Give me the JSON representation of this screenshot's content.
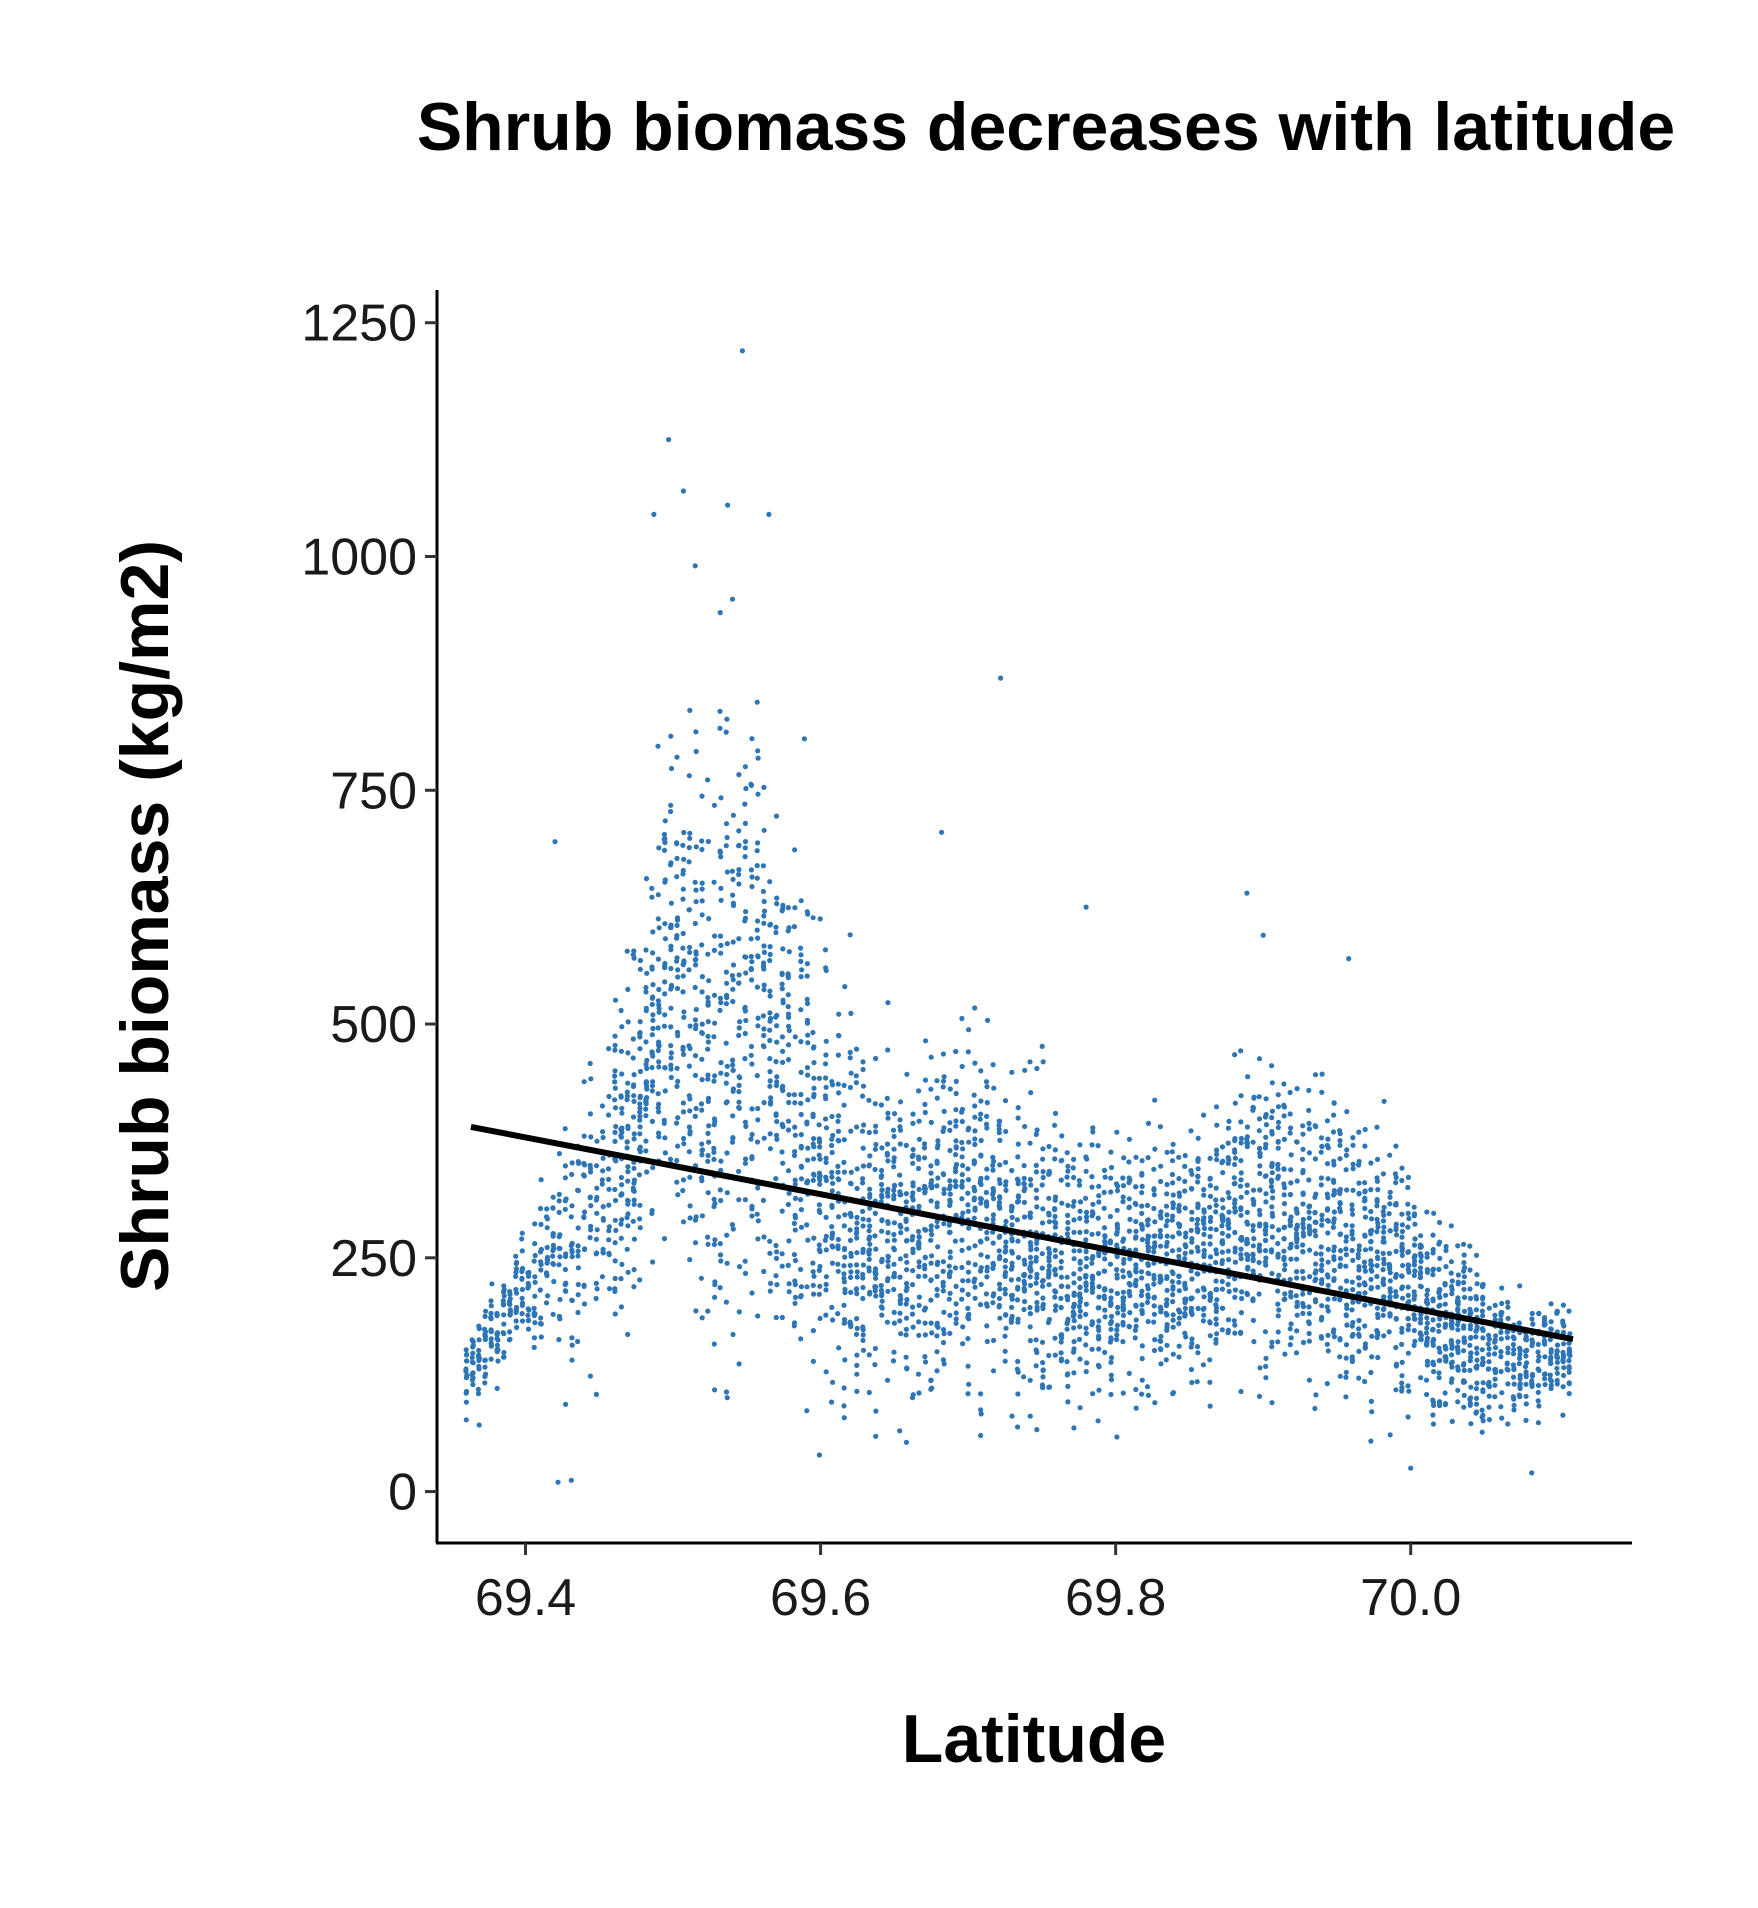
{
  "chart_data": {
    "type": "scatter",
    "title": "Shrub biomass decreases with latitude",
    "xlabel": "Latitude",
    "ylabel": "Shrub biomass (kg/m2)",
    "xlim": [
      69.34,
      70.15
    ],
    "ylim": [
      -55,
      1285
    ],
    "x_ticks": [
      69.4,
      69.6,
      69.8,
      70.0
    ],
    "x_tick_labels": [
      "69.4",
      "69.6",
      "69.8",
      "70.0"
    ],
    "y_ticks": [
      0,
      250,
      500,
      750,
      1000,
      1250
    ],
    "y_tick_labels": [
      "0",
      "250",
      "500",
      "750",
      "1000",
      "1250"
    ],
    "grid": false,
    "legend": "none",
    "point_color": "#2e75b6",
    "line_color": "#000000",
    "series": [
      {
        "type": "scatter",
        "approximate_distribution": [
          {
            "x": 69.36,
            "y_min": 40,
            "y_max": 230
          },
          {
            "x": 69.4,
            "y_min": 140,
            "y_max": 330
          },
          {
            "x": 69.44,
            "y_min": 60,
            "y_max": 600
          },
          {
            "x": 69.48,
            "y_min": 120,
            "y_max": 790
          },
          {
            "x": 69.5,
            "y_min": 170,
            "y_max": 1130
          },
          {
            "x": 69.52,
            "y_min": 5,
            "y_max": 1070
          },
          {
            "x": 69.55,
            "y_min": 30,
            "y_max": 1220
          },
          {
            "x": 69.6,
            "y_min": 10,
            "y_max": 800
          },
          {
            "x": 69.65,
            "y_min": 10,
            "y_max": 600
          },
          {
            "x": 69.7,
            "y_min": 10,
            "y_max": 710
          },
          {
            "x": 69.75,
            "y_min": 20,
            "y_max": 580
          },
          {
            "x": 69.8,
            "y_min": 30,
            "y_max": 520
          },
          {
            "x": 69.85,
            "y_min": 60,
            "y_max": 510
          },
          {
            "x": 69.89,
            "y_min": 50,
            "y_max": 640
          },
          {
            "x": 69.95,
            "y_min": 60,
            "y_max": 570
          },
          {
            "x": 70.0,
            "y_min": 25,
            "y_max": 480
          },
          {
            "x": 70.05,
            "y_min": 20,
            "y_max": 330
          },
          {
            "x": 70.11,
            "y_min": 80,
            "y_max": 240
          }
        ],
        "outliers": [
          {
            "x": 69.547,
            "y": 1220
          },
          {
            "x": 69.497,
            "y": 1125
          },
          {
            "x": 69.507,
            "y": 1070
          },
          {
            "x": 69.537,
            "y": 1055
          },
          {
            "x": 69.565,
            "y": 1045
          },
          {
            "x": 69.487,
            "y": 1045
          },
          {
            "x": 69.515,
            "y": 990
          },
          {
            "x": 69.722,
            "y": 870
          },
          {
            "x": 69.589,
            "y": 805
          },
          {
            "x": 69.682,
            "y": 705
          },
          {
            "x": 69.42,
            "y": 695
          },
          {
            "x": 69.889,
            "y": 640
          },
          {
            "x": 69.78,
            "y": 625
          },
          {
            "x": 69.9,
            "y": 595
          },
          {
            "x": 69.958,
            "y": 570
          },
          {
            "x": 69.422,
            "y": 10
          },
          {
            "x": 69.431,
            "y": 12
          },
          {
            "x": 70.0,
            "y": 25
          },
          {
            "x": 70.082,
            "y": 20
          }
        ]
      },
      {
        "type": "line",
        "name": "",
        "x": [
          69.363,
          70.11
        ],
        "y": [
          390,
          163
        ]
      }
    ]
  }
}
